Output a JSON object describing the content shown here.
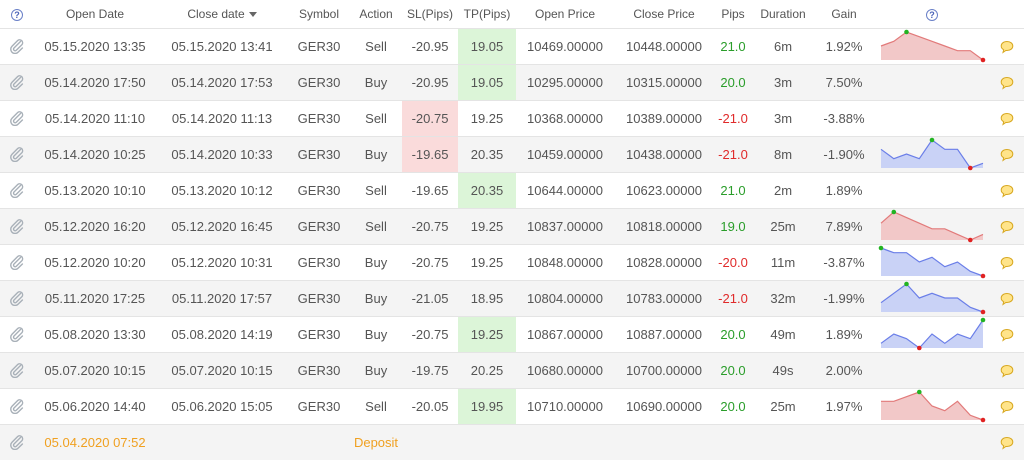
{
  "header": {
    "help_left": "?",
    "open_date": "Open Date",
    "close_date": "Close date",
    "symbol": "Symbol",
    "action": "Action",
    "sl": "SL(Pips)",
    "tp": "TP(Pips)",
    "open_price": "Open Price",
    "close_price": "Close Price",
    "pips": "Pips",
    "duration": "Duration",
    "gain": "Gain",
    "help_right": "?"
  },
  "colors": {
    "positive": "#2a9d2a",
    "negative": "#e02a2a",
    "deposit": "#f0a020",
    "sl_hit_bg": "#fadbdb",
    "tp_hit_bg": "#dcf5d8",
    "spark_red_fill": "#f2c8c8",
    "spark_red_line": "#e27a7a",
    "spark_blue_fill": "#c9d2f6",
    "spark_blue_line": "#6a7ee8"
  },
  "icons": {
    "row_icon": "paperclip-icon",
    "comment": "comment-bubble-icon",
    "help": "question-icon"
  },
  "rows": [
    {
      "open": "05.15.2020 13:35",
      "close": "05.15.2020 13:41",
      "symbol": "GER30",
      "action": "Sell",
      "sl": "-20.95",
      "tp": "19.05",
      "open_price": "10469.00000",
      "close_price": "10448.00000",
      "pips": "21.0",
      "pips_sign": "pos",
      "duration": "6m",
      "gain": "1.92%",
      "sl_hit": false,
      "tp_hit": true,
      "spark": {
        "color": "red",
        "values": [
          3,
          4,
          6,
          5,
          4,
          3,
          2,
          2,
          0
        ]
      }
    },
    {
      "open": "05.14.2020 17:50",
      "close": "05.14.2020 17:53",
      "symbol": "GER30",
      "action": "Buy",
      "sl": "-20.95",
      "tp": "19.05",
      "open_price": "10295.00000",
      "close_price": "10315.00000",
      "pips": "20.0",
      "pips_sign": "pos",
      "duration": "3m",
      "gain": "7.50%",
      "sl_hit": false,
      "tp_hit": true,
      "spark": null
    },
    {
      "open": "05.14.2020 11:10",
      "close": "05.14.2020 11:13",
      "symbol": "GER30",
      "action": "Sell",
      "sl": "-20.75",
      "tp": "19.25",
      "open_price": "10368.00000",
      "close_price": "10389.00000",
      "pips": "-21.0",
      "pips_sign": "neg",
      "duration": "3m",
      "gain": "-3.88%",
      "sl_hit": true,
      "tp_hit": false,
      "spark": null
    },
    {
      "open": "05.14.2020 10:25",
      "close": "05.14.2020 10:33",
      "symbol": "GER30",
      "action": "Buy",
      "sl": "-19.65",
      "tp": "20.35",
      "open_price": "10459.00000",
      "close_price": "10438.00000",
      "pips": "-21.0",
      "pips_sign": "neg",
      "duration": "8m",
      "gain": "-1.90%",
      "sl_hit": true,
      "tp_hit": false,
      "spark": {
        "color": "blue",
        "values": [
          4,
          2,
          3,
          2,
          6,
          4,
          4,
          0,
          1
        ]
      }
    },
    {
      "open": "05.13.2020 10:10",
      "close": "05.13.2020 10:12",
      "symbol": "GER30",
      "action": "Sell",
      "sl": "-19.65",
      "tp": "20.35",
      "open_price": "10644.00000",
      "close_price": "10623.00000",
      "pips": "21.0",
      "pips_sign": "pos",
      "duration": "2m",
      "gain": "1.89%",
      "sl_hit": false,
      "tp_hit": true,
      "spark": null
    },
    {
      "open": "05.12.2020 16:20",
      "close": "05.12.2020 16:45",
      "symbol": "GER30",
      "action": "Sell",
      "sl": "-20.75",
      "tp": "19.25",
      "open_price": "10837.00000",
      "close_price": "10818.00000",
      "pips": "19.0",
      "pips_sign": "pos",
      "duration": "25m",
      "gain": "7.89%",
      "sl_hit": false,
      "tp_hit": false,
      "spark": {
        "color": "red",
        "values": [
          3,
          5,
          4,
          3,
          2,
          2,
          1,
          0,
          1
        ]
      }
    },
    {
      "open": "05.12.2020 10:20",
      "close": "05.12.2020 10:31",
      "symbol": "GER30",
      "action": "Buy",
      "sl": "-20.75",
      "tp": "19.25",
      "open_price": "10848.00000",
      "close_price": "10828.00000",
      "pips": "-20.0",
      "pips_sign": "neg",
      "duration": "11m",
      "gain": "-3.87%",
      "sl_hit": false,
      "tp_hit": false,
      "spark": {
        "color": "blue",
        "values": [
          6,
          5,
          5,
          3,
          4,
          2,
          3,
          1,
          0
        ]
      }
    },
    {
      "open": "05.11.2020 17:25",
      "close": "05.11.2020 17:57",
      "symbol": "GER30",
      "action": "Buy",
      "sl": "-21.05",
      "tp": "18.95",
      "open_price": "10804.00000",
      "close_price": "10783.00000",
      "pips": "-21.0",
      "pips_sign": "neg",
      "duration": "32m",
      "gain": "-1.99%",
      "sl_hit": false,
      "tp_hit": false,
      "spark": {
        "color": "blue",
        "values": [
          2,
          4,
          6,
          3,
          4,
          3,
          3,
          1,
          0
        ]
      }
    },
    {
      "open": "05.08.2020 13:30",
      "close": "05.08.2020 14:19",
      "symbol": "GER30",
      "action": "Buy",
      "sl": "-20.75",
      "tp": "19.25",
      "open_price": "10867.00000",
      "close_price": "10887.00000",
      "pips": "20.0",
      "pips_sign": "pos",
      "duration": "49m",
      "gain": "1.89%",
      "sl_hit": false,
      "tp_hit": true,
      "spark": {
        "color": "blue",
        "values": [
          1,
          3,
          2,
          0,
          3,
          1,
          3,
          2,
          6
        ]
      }
    },
    {
      "open": "05.07.2020 10:15",
      "close": "05.07.2020 10:15",
      "symbol": "GER30",
      "action": "Buy",
      "sl": "-19.75",
      "tp": "20.25",
      "open_price": "10680.00000",
      "close_price": "10700.00000",
      "pips": "20.0",
      "pips_sign": "pos",
      "duration": "49s",
      "gain": "2.00%",
      "sl_hit": false,
      "tp_hit": false,
      "spark": null
    },
    {
      "open": "05.06.2020 14:40",
      "close": "05.06.2020 15:05",
      "symbol": "GER30",
      "action": "Sell",
      "sl": "-20.05",
      "tp": "19.95",
      "open_price": "10710.00000",
      "close_price": "10690.00000",
      "pips": "20.0",
      "pips_sign": "pos",
      "duration": "25m",
      "gain": "1.97%",
      "sl_hit": false,
      "tp_hit": true,
      "spark": {
        "color": "red",
        "values": [
          4,
          4,
          5,
          6,
          3,
          2,
          4,
          1,
          0
        ]
      }
    }
  ],
  "deposit_row": {
    "open": "05.04.2020 07:52",
    "action": "Deposit"
  }
}
